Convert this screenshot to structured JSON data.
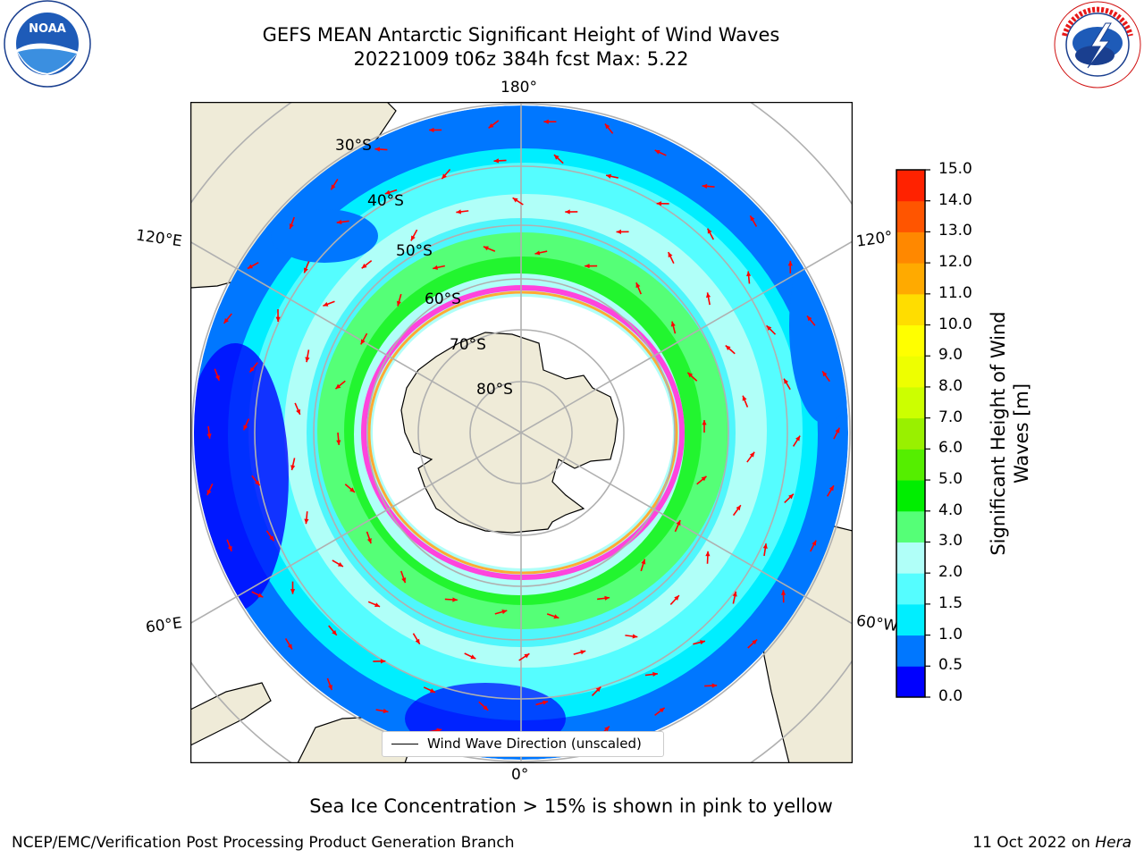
{
  "title": {
    "line1": "GEFS MEAN Antarctic Significant Height of Wind Waves",
    "line2": "20221009 t06z 384h fcst   Max: 5.22"
  },
  "logos": {
    "left": "NOAA",
    "left_ring_text": "NATIONAL OCEANIC AND ATMOSPHERIC ADMINISTRATION · U.S. DEPARTMENT OF COMMERCE",
    "right_ring_text": "NATIONAL WEATHER SERVICE"
  },
  "map": {
    "projection": "South Polar Stereographic",
    "longitude_labels": {
      "top": "180°",
      "bottom": "0°",
      "left_upper": "120°E",
      "left_lower": "60°E",
      "right_upper": "120°",
      "right_lower": "60°W"
    },
    "latitude_labels": [
      "30°S",
      "40°S",
      "50°S",
      "60°S",
      "70°S",
      "80°S"
    ],
    "legend": {
      "line_label": "Wind Wave Direction (unscaled)"
    },
    "arrow_color": "#ff0000",
    "land_color": "#efebd8",
    "gridline_color": "#b0b0b0"
  },
  "colorbar": {
    "label_line1": "Significant Height of Wind",
    "label_line2": "Waves [m]",
    "ticks": [
      "15.0",
      "14.0",
      "13.0",
      "12.0",
      "11.0",
      "10.0",
      "9.0",
      "8.0",
      "7.0",
      "6.0",
      "5.0",
      "4.0",
      "3.0",
      "2.0",
      "1.5",
      "1.0",
      "0.5",
      "0.0"
    ],
    "levels": [
      0.0,
      0.5,
      1.0,
      1.5,
      2.0,
      3.0,
      4.0,
      5.0,
      6.0,
      7.0,
      8.0,
      9.0,
      10.0,
      11.0,
      12.0,
      13.0,
      14.0,
      15.0
    ],
    "colors": [
      "#0000ff",
      "#0077ff",
      "#00eeff",
      "#55fdff",
      "#b0fff8",
      "#55ff77",
      "#00ee00",
      "#55ee00",
      "#99f000",
      "#ccff00",
      "#eeff00",
      "#ffff00",
      "#ffdd00",
      "#ffaa00",
      "#ff8800",
      "#ff5500",
      "#ff2200"
    ]
  },
  "notes": {
    "sea_ice": "Sea Ice Concentration > 15% is shown in pink to yellow",
    "footer_left": "NCEP/EMC/Verification Post Processing Product Generation Branch",
    "footer_right_prefix": "11 Oct 2022 on ",
    "footer_right_host": "Hera"
  }
}
